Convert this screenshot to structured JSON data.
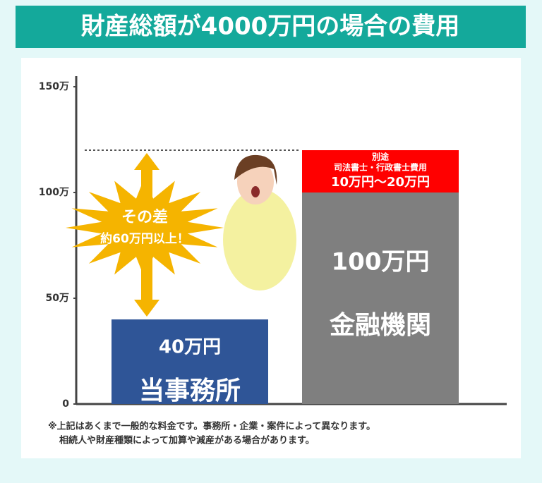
{
  "chart_data": {
    "type": "bar",
    "title": "財産総額が4000万円の場合の費用",
    "categories": [
      "当事務所",
      "金融機関"
    ],
    "series": [
      {
        "colors": [
          "#2f5597",
          "#7f7f7f"
        ],
        "values": [
          40,
          100
        ],
        "value_labels": [
          "40万円",
          "100万円"
        ]
      },
      {
        "colors": [
          null,
          "#ff0000"
        ],
        "values": [
          null,
          20
        ],
        "value_labels": [
          null,
          "10万円～20万円"
        ],
        "captions": [
          null,
          [
            "別途",
            "司法書士・行政書士費用"
          ]
        ]
      }
    ],
    "ylim": [
      0,
      150
    ],
    "yticks": [
      0,
      {
        "value": 50,
        "label": "50万"
      },
      {
        "value": 100,
        "label": "100万"
      },
      {
        "value": 150,
        "label": "150万"
      }
    ],
    "annotations": [
      "その差",
      "約60万円以上！"
    ],
    "notes": [
      "※上記はあくまで一般的な料金です。事務所・企業・案件によって異なります。",
      "相続人や財産種類によって加算や減産がある場合があります。"
    ]
  }
}
